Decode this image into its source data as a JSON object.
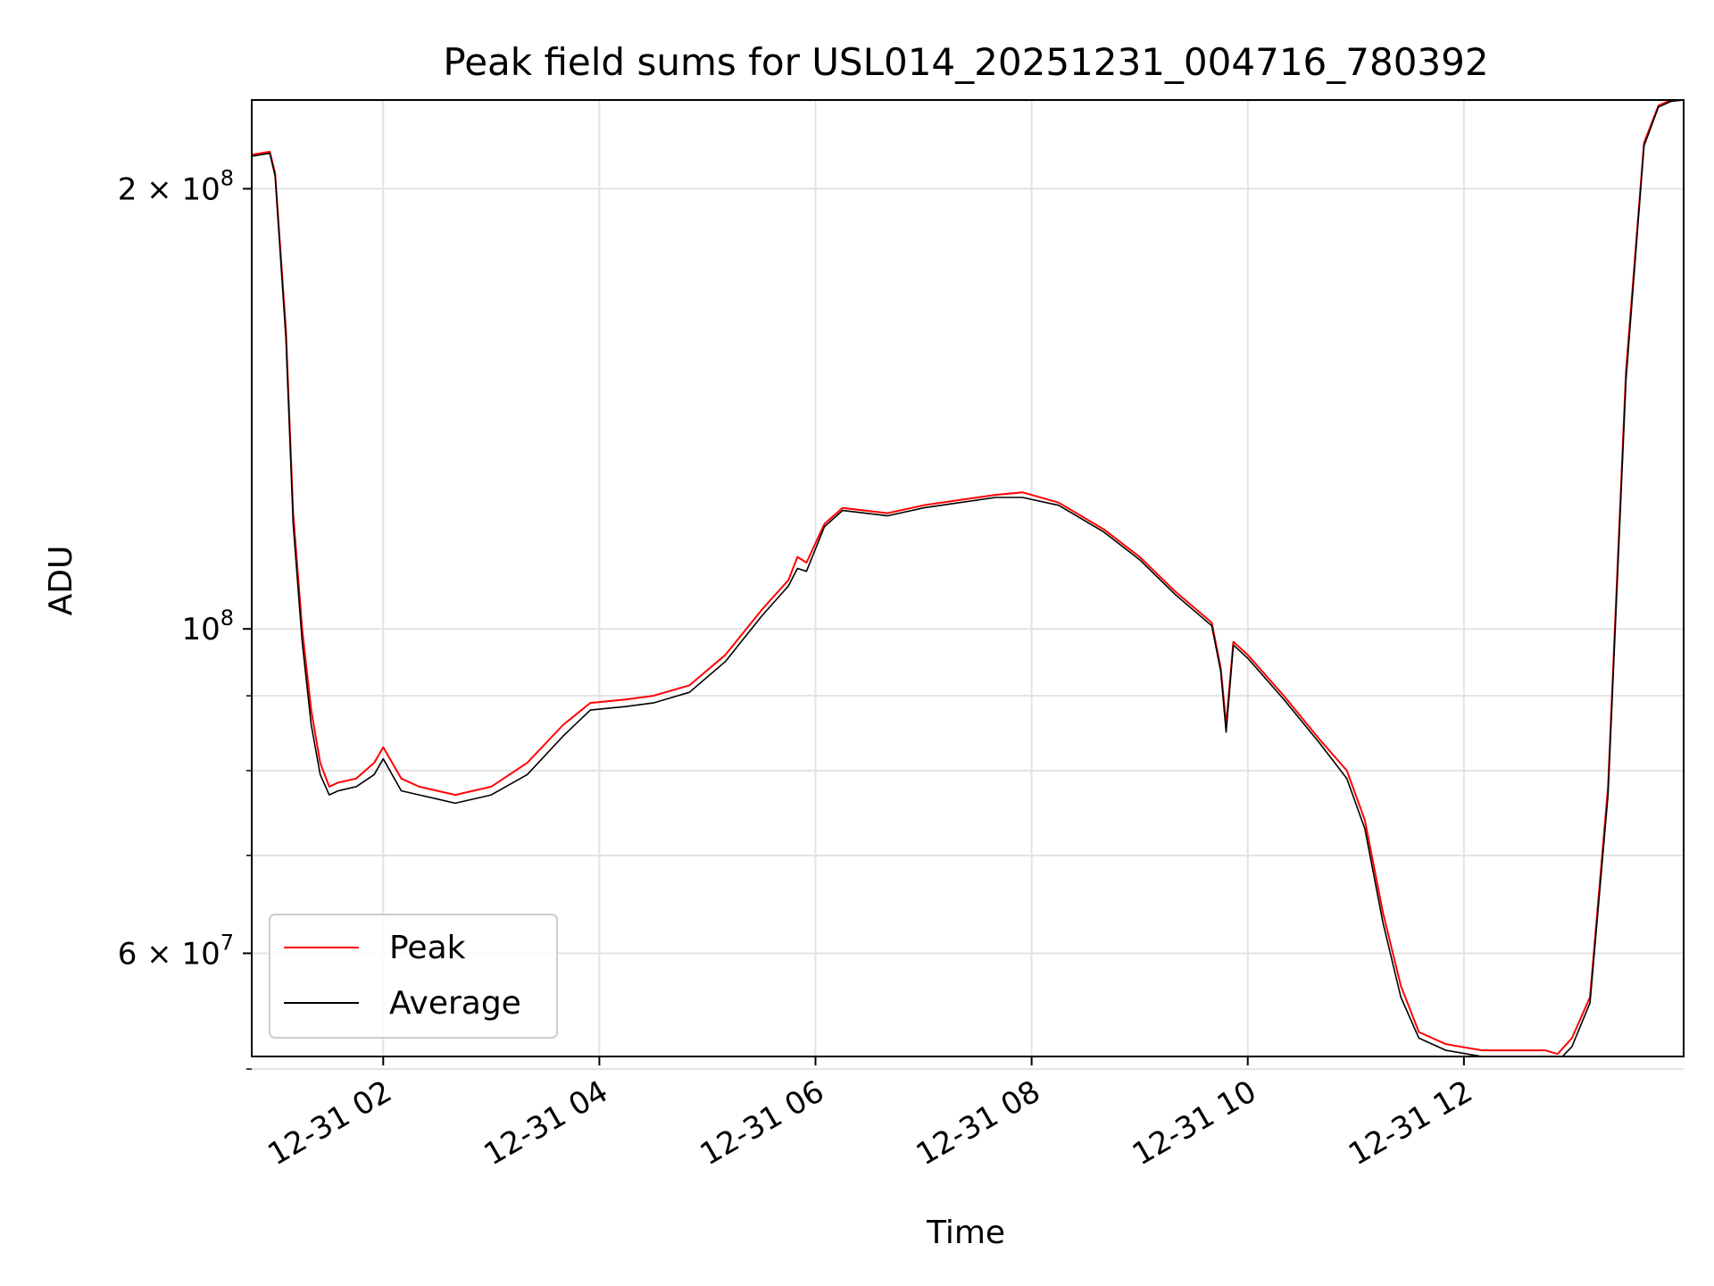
{
  "chart_data": {
    "type": "line",
    "title": "Peak field sums for USL014_20251231_004716_780392",
    "xlabel": "Time",
    "ylabel": "ADU",
    "yscale": "log",
    "xlim": [
      "2025-12-31T00:47",
      "2025-12-31T14:02"
    ],
    "ylim": [
      51000000,
      230000000
    ],
    "grid": true,
    "legend_position": "lower-left",
    "x_ticks": [
      {
        "value": "2025-12-31T02:00",
        "label": "12-31 02"
      },
      {
        "value": "2025-12-31T04:00",
        "label": "12-31 04"
      },
      {
        "value": "2025-12-31T06:00",
        "label": "12-31 06"
      },
      {
        "value": "2025-12-31T08:00",
        "label": "12-31 08"
      },
      {
        "value": "2025-12-31T10:00",
        "label": "12-31 10"
      },
      {
        "value": "2025-12-31T12:00",
        "label": "12-31 12"
      }
    ],
    "y_ticks_major": [
      {
        "value": 60000000,
        "mantissa": "6",
        "times": "×",
        "base": "10",
        "exp": "7"
      },
      {
        "value": 100000000,
        "mantissa": "",
        "times": "",
        "base": "10",
        "exp": "8"
      },
      {
        "value": 200000000,
        "mantissa": "2",
        "times": "×",
        "base": "10",
        "exp": "8"
      }
    ],
    "y_ticks_minor": [
      50000000,
      70000000,
      80000000,
      90000000
    ],
    "series": [
      {
        "name": "Peak",
        "color": "#ff0000",
        "x": [
          "2025-12-31T00:47",
          "2025-12-31T00:57",
          "2025-12-31T01:00",
          "2025-12-31T01:06",
          "2025-12-31T01:10",
          "2025-12-31T01:15",
          "2025-12-31T01:20",
          "2025-12-31T01:25",
          "2025-12-31T01:30",
          "2025-12-31T01:35",
          "2025-12-31T01:45",
          "2025-12-31T01:55",
          "2025-12-31T02:00",
          "2025-12-31T02:10",
          "2025-12-31T02:20",
          "2025-12-31T02:30",
          "2025-12-31T02:40",
          "2025-12-31T03:00",
          "2025-12-31T03:20",
          "2025-12-31T03:40",
          "2025-12-31T03:55",
          "2025-12-31T04:15",
          "2025-12-31T04:30",
          "2025-12-31T04:50",
          "2025-12-31T05:10",
          "2025-12-31T05:30",
          "2025-12-31T05:45",
          "2025-12-31T05:50",
          "2025-12-31T05:55",
          "2025-12-31T06:05",
          "2025-12-31T06:15",
          "2025-12-31T06:40",
          "2025-12-31T07:00",
          "2025-12-31T07:20",
          "2025-12-31T07:40",
          "2025-12-31T07:55",
          "2025-12-31T08:15",
          "2025-12-31T08:40",
          "2025-12-31T09:00",
          "2025-12-31T09:20",
          "2025-12-31T09:40",
          "2025-12-31T09:45",
          "2025-12-31T09:48",
          "2025-12-31T09:52",
          "2025-12-31T10:00",
          "2025-12-31T10:20",
          "2025-12-31T10:40",
          "2025-12-31T10:55",
          "2025-12-31T11:05",
          "2025-12-31T11:15",
          "2025-12-31T11:25",
          "2025-12-31T11:35",
          "2025-12-31T11:50",
          "2025-12-31T12:10",
          "2025-12-31T12:30",
          "2025-12-31T12:45",
          "2025-12-31T12:52",
          "2025-12-31T13:00",
          "2025-12-31T13:10",
          "2025-12-31T13:20",
          "2025-12-31T13:30",
          "2025-12-31T13:40",
          "2025-12-31T13:48",
          "2025-12-31T13:55",
          "2025-12-31T14:02"
        ],
        "values": [
          211000000,
          212000000,
          205000000,
          160000000,
          120000000,
          100000000,
          88000000,
          81000000,
          78000000,
          78500000,
          79000000,
          81000000,
          83000000,
          79000000,
          78000000,
          77500000,
          77000000,
          78000000,
          81000000,
          86000000,
          89000000,
          89500000,
          90000000,
          91500000,
          96000000,
          103000000,
          108000000,
          112000000,
          111000000,
          118000000,
          121000000,
          120000000,
          121500000,
          122500000,
          123500000,
          124000000,
          122000000,
          117000000,
          112000000,
          106000000,
          101000000,
          94000000,
          86000000,
          98000000,
          96000000,
          90000000,
          84000000,
          80000000,
          74000000,
          64000000,
          57000000,
          53000000,
          52000000,
          51500000,
          51500000,
          51500000,
          51200000,
          52500000,
          56000000,
          78000000,
          150000000,
          215000000,
          228000000,
          230000000,
          230000000
        ]
      },
      {
        "name": "Average",
        "color": "#000000",
        "x": [
          "2025-12-31T00:47",
          "2025-12-31T00:57",
          "2025-12-31T01:00",
          "2025-12-31T01:06",
          "2025-12-31T01:10",
          "2025-12-31T01:15",
          "2025-12-31T01:20",
          "2025-12-31T01:25",
          "2025-12-31T01:30",
          "2025-12-31T01:35",
          "2025-12-31T01:45",
          "2025-12-31T01:55",
          "2025-12-31T02:00",
          "2025-12-31T02:10",
          "2025-12-31T02:20",
          "2025-12-31T02:30",
          "2025-12-31T02:40",
          "2025-12-31T03:00",
          "2025-12-31T03:20",
          "2025-12-31T03:40",
          "2025-12-31T03:55",
          "2025-12-31T04:15",
          "2025-12-31T04:30",
          "2025-12-31T04:50",
          "2025-12-31T05:10",
          "2025-12-31T05:30",
          "2025-12-31T05:45",
          "2025-12-31T05:50",
          "2025-12-31T05:55",
          "2025-12-31T06:05",
          "2025-12-31T06:15",
          "2025-12-31T06:40",
          "2025-12-31T07:00",
          "2025-12-31T07:20",
          "2025-12-31T07:40",
          "2025-12-31T07:55",
          "2025-12-31T08:15",
          "2025-12-31T08:40",
          "2025-12-31T09:00",
          "2025-12-31T09:20",
          "2025-12-31T09:40",
          "2025-12-31T09:45",
          "2025-12-31T09:48",
          "2025-12-31T09:52",
          "2025-12-31T10:00",
          "2025-12-31T10:20",
          "2025-12-31T10:40",
          "2025-12-31T10:55",
          "2025-12-31T11:05",
          "2025-12-31T11:15",
          "2025-12-31T11:25",
          "2025-12-31T11:35",
          "2025-12-31T11:50",
          "2025-12-31T12:10",
          "2025-12-31T12:30",
          "2025-12-31T12:45",
          "2025-12-31T12:52",
          "2025-12-31T13:00",
          "2025-12-31T13:10",
          "2025-12-31T13:20",
          "2025-12-31T13:30",
          "2025-12-31T13:40",
          "2025-12-31T13:48",
          "2025-12-31T13:55",
          "2025-12-31T14:02"
        ],
        "values": [
          210500000,
          211500000,
          204000000,
          158000000,
          118000000,
          98000000,
          86000000,
          79500000,
          77000000,
          77500000,
          78000000,
          79500000,
          81500000,
          77500000,
          77000000,
          76500000,
          76000000,
          77000000,
          79500000,
          84500000,
          88000000,
          88500000,
          89000000,
          90500000,
          95000000,
          102000000,
          107000000,
          110000000,
          109500000,
          117500000,
          120500000,
          119500000,
          121000000,
          122000000,
          123000000,
          123000000,
          121500000,
          116500000,
          111500000,
          105500000,
          100500000,
          93500000,
          85000000,
          97500000,
          95500000,
          89500000,
          83500000,
          79000000,
          73000000,
          63000000,
          56000000,
          52500000,
          51500000,
          51000000,
          51000000,
          50800000,
          50600000,
          51800000,
          55500000,
          77000000,
          148000000,
          214000000,
          227500000,
          229500000,
          230000000
        ]
      }
    ]
  }
}
